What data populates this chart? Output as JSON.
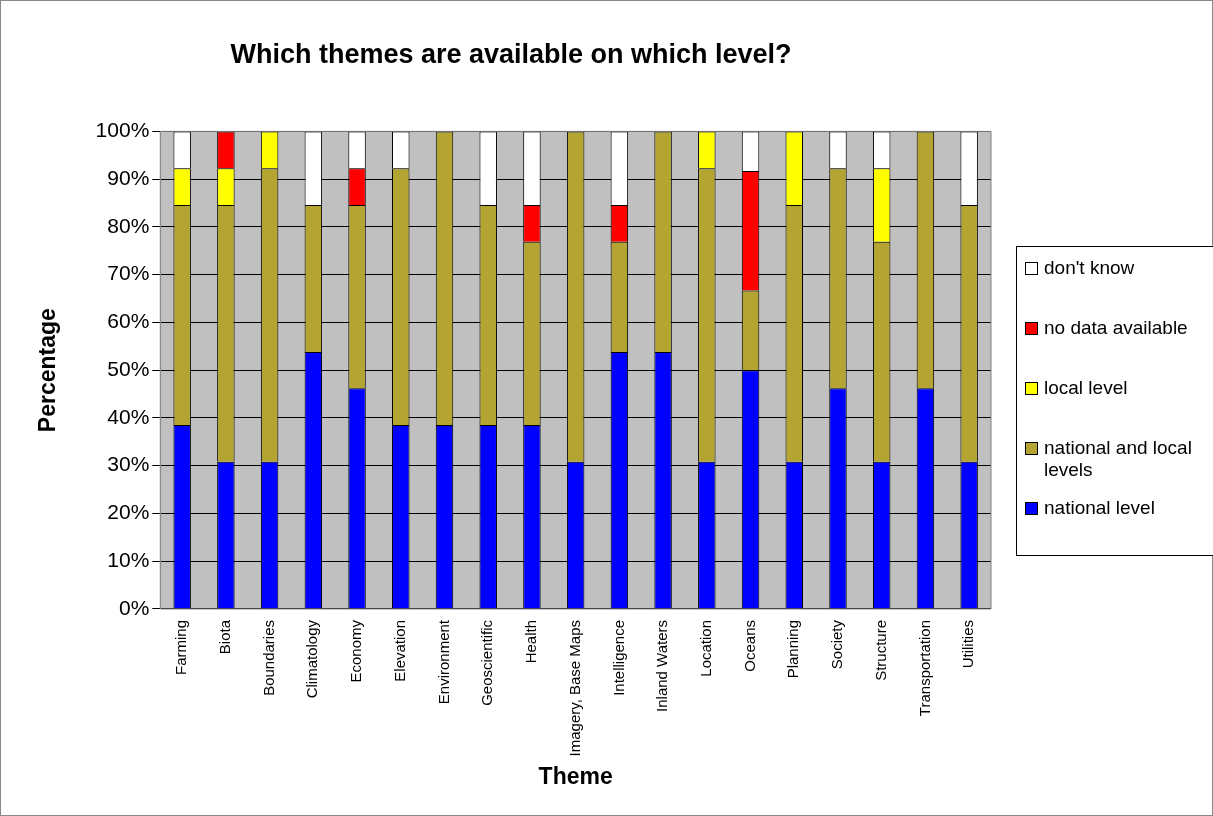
{
  "chart_data": {
    "type": "bar",
    "title": "Which themes are available on which level?",
    "xlabel": "Theme",
    "ylabel": "Percentage",
    "categories": [
      "Farming",
      "Biota",
      "Boundaries",
      "Climatology",
      "Economy",
      "Elevation",
      "Environment",
      "Geoscientific",
      "Health",
      "Imagery, Base Maps",
      "Intelligence",
      "Inland Waters",
      "Location",
      "Oceans",
      "Planning",
      "Society",
      "Structure",
      "Transportation",
      "Utilities"
    ],
    "stacked": true,
    "series": [
      {
        "name": "national level",
        "color": "#0000ff",
        "values": [
          38.5,
          30.8,
          30.8,
          53.8,
          46.2,
          38.5,
          38.5,
          38.5,
          38.5,
          30.8,
          53.8,
          53.8,
          30.8,
          50,
          30.8,
          46.2,
          30.8,
          46.2,
          30.8
        ]
      },
      {
        "name": "national and local levels",
        "color": "#b4a532",
        "values": [
          46.1,
          53.8,
          61.5,
          30.8,
          38.4,
          53.8,
          61.5,
          46.1,
          38.4,
          69.2,
          23.1,
          46.2,
          61.5,
          16.7,
          53.8,
          46.1,
          46.1,
          53.8,
          53.8
        ]
      },
      {
        "name": "local level",
        "color": "#ffff00",
        "values": [
          7.7,
          7.7,
          7.7,
          0,
          0,
          0,
          0,
          0,
          0,
          0,
          0,
          0,
          7.7,
          0,
          15.4,
          0,
          15.4,
          0,
          0
        ]
      },
      {
        "name": "no data available",
        "color": "#ff0000",
        "values": [
          0,
          7.7,
          0,
          0,
          7.7,
          0,
          0,
          0,
          7.7,
          0,
          7.7,
          0,
          0,
          25,
          0,
          0,
          0,
          0,
          0
        ]
      },
      {
        "name": "don't know",
        "color": "#ffffff",
        "values": [
          7.7,
          0,
          0,
          15.4,
          7.7,
          7.7,
          0,
          15.4,
          15.4,
          0,
          15.4,
          0,
          0,
          8.3,
          0,
          7.7,
          7.7,
          0,
          15.4
        ]
      }
    ],
    "ylim": [
      0,
      100
    ],
    "yticks": [
      {
        "value": 0,
        "label": "0%"
      },
      {
        "value": 10,
        "label": "10%"
      },
      {
        "value": 20,
        "label": "20%"
      },
      {
        "value": 30,
        "label": "30%"
      },
      {
        "value": 40,
        "label": "40%"
      },
      {
        "value": 50,
        "label": "50%"
      },
      {
        "value": 60,
        "label": "60%"
      },
      {
        "value": 70,
        "label": "70%"
      },
      {
        "value": 80,
        "label": "80%"
      },
      {
        "value": 90,
        "label": "90%"
      },
      {
        "value": 100,
        "label": "100%"
      }
    ],
    "grid": "y",
    "legend": "right"
  }
}
